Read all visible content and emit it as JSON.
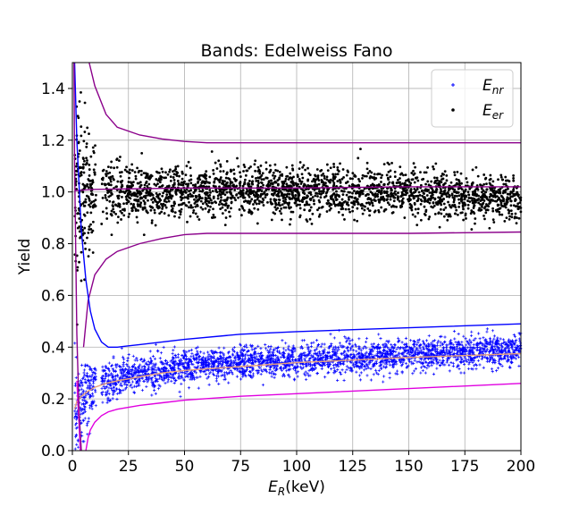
{
  "chart_data": {
    "type": "scatter",
    "title": "Bands: Edelweiss Fano",
    "xlabel": {
      "main": "E",
      "sub": "R",
      "unit": "(keV)"
    },
    "ylabel": "Yield",
    "xlim": [
      0,
      200
    ],
    "ylim": [
      0,
      1.5
    ],
    "x_ticks": [
      0,
      25,
      50,
      75,
      100,
      125,
      150,
      175,
      200
    ],
    "y_ticks": [
      0.0,
      0.2,
      0.4,
      0.6,
      0.8,
      1.0,
      1.2,
      1.4
    ],
    "y_tick_labels": [
      "0.0",
      "0.2",
      "0.4",
      "0.6",
      "0.8",
      "1.0",
      "1.2",
      "1.4"
    ],
    "grid": true,
    "legend_position": "top-right",
    "legend": [
      {
        "main": "E",
        "sub": "nr",
        "marker": "plus",
        "color": "#0000ff"
      },
      {
        "main": "E",
        "sub": "er",
        "marker": "dot",
        "color": "#000000"
      }
    ],
    "series": [
      {
        "name_main": "E",
        "name_sub": "nr",
        "color": "#0000ff",
        "marker": "plus",
        "band_mean": {
          "x": [
            2,
            10,
            25,
            50,
            75,
            100,
            125,
            150,
            175,
            200
          ],
          "y": [
            0.17,
            0.25,
            0.29,
            0.32,
            0.34,
            0.35,
            0.36,
            0.37,
            0.38,
            0.39
          ]
        },
        "band_spread": {
          "x": [
            2,
            10,
            25,
            50,
            75,
            100,
            125,
            150,
            175,
            200
          ],
          "y": [
            0.09,
            0.045,
            0.035,
            0.032,
            0.03,
            0.03,
            0.03,
            0.03,
            0.03,
            0.03
          ]
        },
        "x_range": [
          1,
          200
        ],
        "point_count": 3000
      },
      {
        "name_main": "E",
        "name_sub": "er",
        "color": "#000000",
        "marker": "dot",
        "band_mean": {
          "x": [
            2,
            10,
            25,
            50,
            100,
            150,
            200
          ],
          "y": [
            1.0,
            1.0,
            1.0,
            1.0,
            1.0,
            1.0,
            0.97
          ]
        },
        "band_spread": {
          "x": [
            2,
            10,
            25,
            50,
            100,
            150,
            200
          ],
          "y": [
            0.2,
            0.08,
            0.055,
            0.048,
            0.045,
            0.043,
            0.04
          ]
        },
        "x_range": [
          1,
          200
        ],
        "point_count": 2600
      }
    ],
    "lines": [
      {
        "role": "er-upper",
        "color": "#8b008b",
        "x": [
          7.5,
          10,
          15,
          20,
          30,
          40,
          50,
          60,
          80,
          100,
          150,
          200
        ],
        "y": [
          1.5,
          1.41,
          1.3,
          1.25,
          1.22,
          1.205,
          1.195,
          1.19,
          1.19,
          1.19,
          1.19,
          1.19
        ]
      },
      {
        "role": "er-mean",
        "color": "#8b008b",
        "x": [
          1,
          10,
          50,
          100,
          150,
          200
        ],
        "y": [
          1.005,
          1.01,
          1.015,
          1.015,
          1.02,
          1.02
        ]
      },
      {
        "role": "er-lower",
        "color": "#8b008b",
        "x": [
          5,
          7,
          10,
          15,
          20,
          30,
          40,
          50,
          60,
          100,
          150,
          200
        ],
        "y": [
          0.4,
          0.58,
          0.68,
          0.74,
          0.77,
          0.8,
          0.82,
          0.835,
          0.84,
          0.84,
          0.84,
          0.845
        ]
      },
      {
        "role": "nr-upper",
        "color": "#0000ff",
        "x": [
          1,
          2,
          4,
          6,
          8,
          10,
          13,
          16,
          20,
          25,
          30,
          50,
          75,
          100,
          150,
          200
        ],
        "y": [
          1.5,
          1.2,
          0.85,
          0.66,
          0.54,
          0.47,
          0.42,
          0.4,
          0.4,
          0.405,
          0.41,
          0.43,
          0.45,
          0.46,
          0.475,
          0.49
        ]
      },
      {
        "role": "nr-mean",
        "color": "#e8a07a",
        "x": [
          1,
          2,
          4,
          7,
          10,
          15,
          20,
          30,
          40,
          50,
          75,
          100,
          150,
          200
        ],
        "y": [
          0.16,
          0.19,
          0.21,
          0.23,
          0.245,
          0.26,
          0.27,
          0.285,
          0.3,
          0.31,
          0.325,
          0.34,
          0.36,
          0.375
        ]
      },
      {
        "role": "nr-lower",
        "color": "#e000e0",
        "x": [
          6,
          7,
          8,
          10,
          13,
          16,
          20,
          30,
          40,
          50,
          75,
          100,
          150,
          200
        ],
        "y": [
          0.0,
          0.05,
          0.08,
          0.11,
          0.135,
          0.15,
          0.16,
          0.175,
          0.185,
          0.195,
          0.21,
          0.22,
          0.24,
          0.26
        ]
      },
      {
        "role": "nr-lower-b",
        "color": "#e000e0",
        "x": [
          2,
          3,
          3.5
        ],
        "y": [
          0.27,
          0.1,
          0.0
        ]
      },
      {
        "role": "er-low-left",
        "color": "#8b008b",
        "x": [
          0.7,
          1,
          2,
          3,
          4
        ],
        "y": [
          1.5,
          1.1,
          0.45,
          0.15,
          0.0
        ]
      }
    ]
  }
}
